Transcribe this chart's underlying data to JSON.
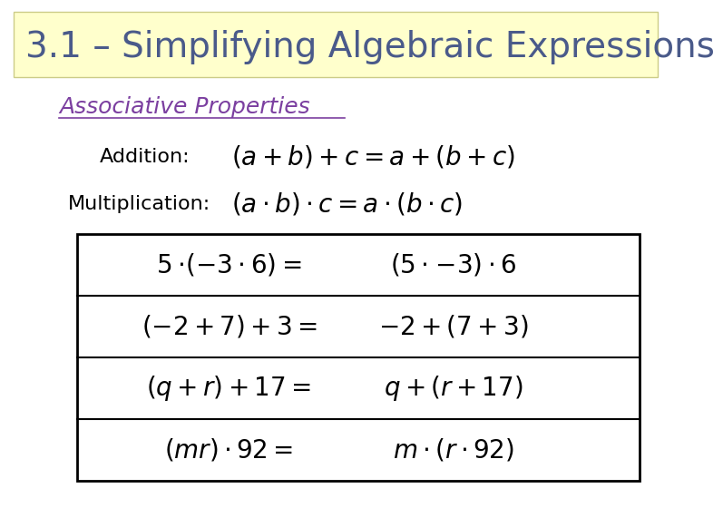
{
  "title": "3.1 – Simplifying Algebraic Expressions",
  "title_bg": "#ffffcc",
  "title_color": "#4a5a8a",
  "subtitle": "Associative Properties",
  "subtitle_color": "#7B3FA0",
  "bg_color": "#ffffff",
  "table_border_color": "#000000",
  "text_color": "#000000",
  "title_fontsize": 28,
  "subtitle_fontsize": 18,
  "label_fontsize": 16,
  "formula_fontsize": 20,
  "table_fontsize": 20
}
